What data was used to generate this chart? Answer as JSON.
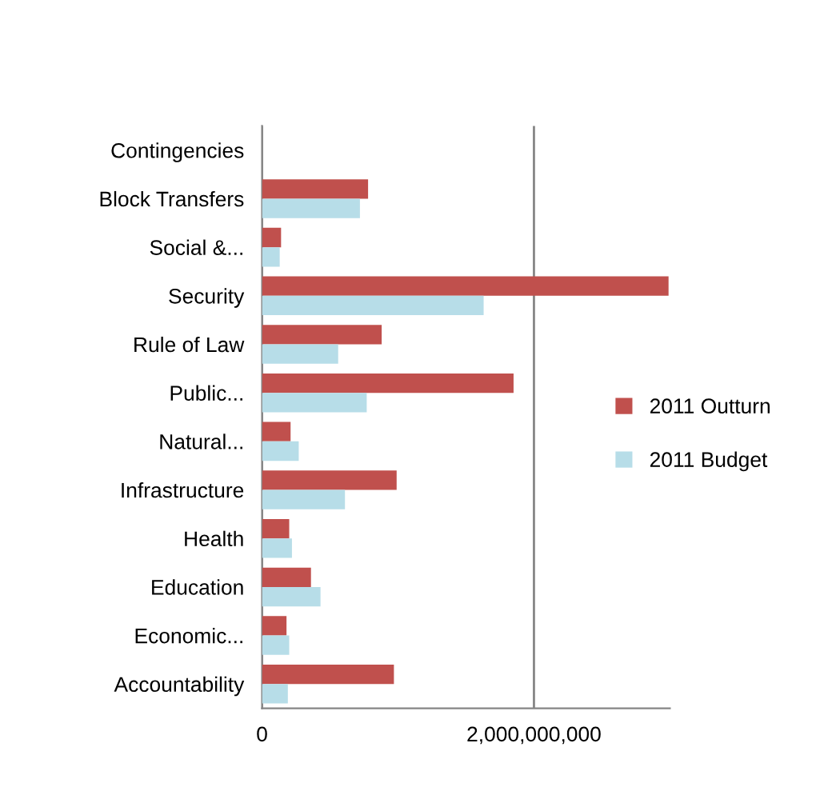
{
  "chart_data": {
    "type": "bar",
    "orientation": "horizontal",
    "categories": [
      "Contingencies",
      "Block Transfers",
      "Social &...",
      "Security",
      "Rule of Law",
      "Public...",
      "Natural...",
      "Infrastructure",
      "Health",
      "Education",
      "Economic...",
      "Accountability"
    ],
    "series": [
      {
        "name": "2011 Outturn",
        "color": "#c0504d",
        "values": [
          null,
          780000000,
          140000000,
          2990000000,
          880000000,
          1850000000,
          210000000,
          990000000,
          200000000,
          360000000,
          180000000,
          970000000
        ]
      },
      {
        "name": "2011 Budget",
        "color": "#b7dde8",
        "values": [
          null,
          720000000,
          130000000,
          1630000000,
          560000000,
          770000000,
          270000000,
          610000000,
          220000000,
          430000000,
          200000000,
          190000000
        ]
      }
    ],
    "xlim": [
      0,
      3000000000
    ],
    "xticks": [
      0,
      {
        "value": 2000000000,
        "label": "2,000,000,000"
      }
    ],
    "grid": "x",
    "legend": "right"
  }
}
